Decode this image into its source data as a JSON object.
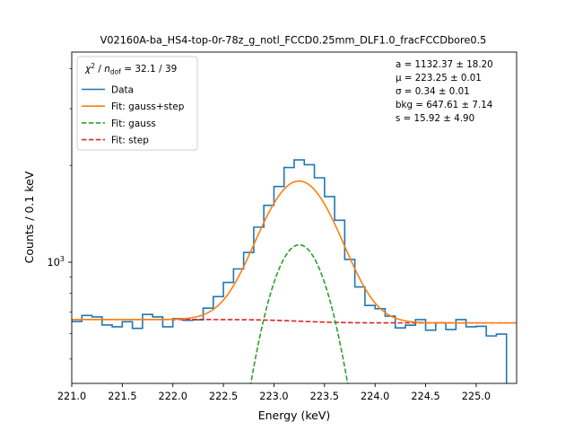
{
  "chart_data": {
    "type": "line",
    "title": "V02160A-ba_HS4-top-0r-78z_g_notl_FCCD0.25mm_DLF1.0_fracFCCDbore0.5",
    "xlabel": "Energy (keV)",
    "ylabel": "Counts / 0.1 keV",
    "xlim": [
      221.0,
      225.4
    ],
    "ylim": [
      420,
      4500
    ],
    "yscale": "log",
    "grid": false,
    "x_ticks": [
      221.0,
      221.5,
      222.0,
      222.5,
      223.0,
      223.5,
      224.0,
      224.5,
      225.0
    ],
    "x_tick_labels": [
      "221.0",
      "221.5",
      "222.0",
      "222.5",
      "223.0",
      "223.5",
      "224.0",
      "224.5",
      "225.0"
    ],
    "y_ticks": [
      1000
    ],
    "legend": {
      "placement": "top-left",
      "header": "χ² / n_dof = 32.1 / 39",
      "entries": [
        {
          "label": "Data",
          "color": "#1f77b4",
          "style": "solid"
        },
        {
          "label": "Fit: gauss+step",
          "color": "#ff7f0e",
          "style": "solid"
        },
        {
          "label": "Fit: gauss",
          "color": "#2ca02c",
          "style": "dashed"
        },
        {
          "label": "Fit: step",
          "color": "#d62728",
          "style": "dashed"
        }
      ]
    },
    "parameters": [
      "a = 1132.37 ± 18.20",
      "μ = 223.25 ± 0.01",
      "σ = 0.34 ± 0.01",
      "bkg = 647.61 ± 7.14",
      "s = 15.92 ± 4.90"
    ],
    "fit_params": {
      "a": 1132.37,
      "mu": 223.25,
      "sigma": 0.34,
      "bkg": 647.61,
      "s": 15.92
    },
    "series": [
      {
        "name": "Data",
        "style": "step",
        "color": "#1f77b4",
        "bin_edges": [
          221.0,
          221.1,
          221.2,
          221.3,
          221.4,
          221.5,
          221.6,
          221.7,
          221.8,
          221.9,
          222.0,
          222.1,
          222.2,
          222.3,
          222.4,
          222.5,
          222.6,
          222.7,
          222.8,
          222.9,
          223.0,
          223.1,
          223.2,
          223.3,
          223.4,
          223.5,
          223.6,
          223.7,
          223.8,
          223.9,
          224.0,
          224.1,
          224.2,
          224.3,
          224.4,
          224.5,
          224.6,
          224.7,
          224.8,
          224.9,
          225.0,
          225.1,
          225.2,
          225.3,
          225.4
        ],
        "values": [
          654,
          683,
          676,
          638,
          630,
          653,
          623,
          688,
          676,
          630,
          668,
          660,
          662,
          720,
          782,
          865,
          953,
          1072,
          1285,
          1502,
          1720,
          1970,
          2080,
          2010,
          1830,
          1600,
          1350,
          1020,
          838,
          734,
          717,
          680,
          625,
          637,
          663,
          615,
          648,
          618,
          663,
          630,
          632,
          590,
          598,
          320
        ]
      },
      {
        "name": "Fit: gauss+step",
        "color": "#ff7f0e",
        "style": "solid"
      },
      {
        "name": "Fit: gauss",
        "color": "#2ca02c",
        "style": "dashed"
      },
      {
        "name": "Fit: step",
        "color": "#d62728",
        "style": "dashed"
      }
    ]
  }
}
